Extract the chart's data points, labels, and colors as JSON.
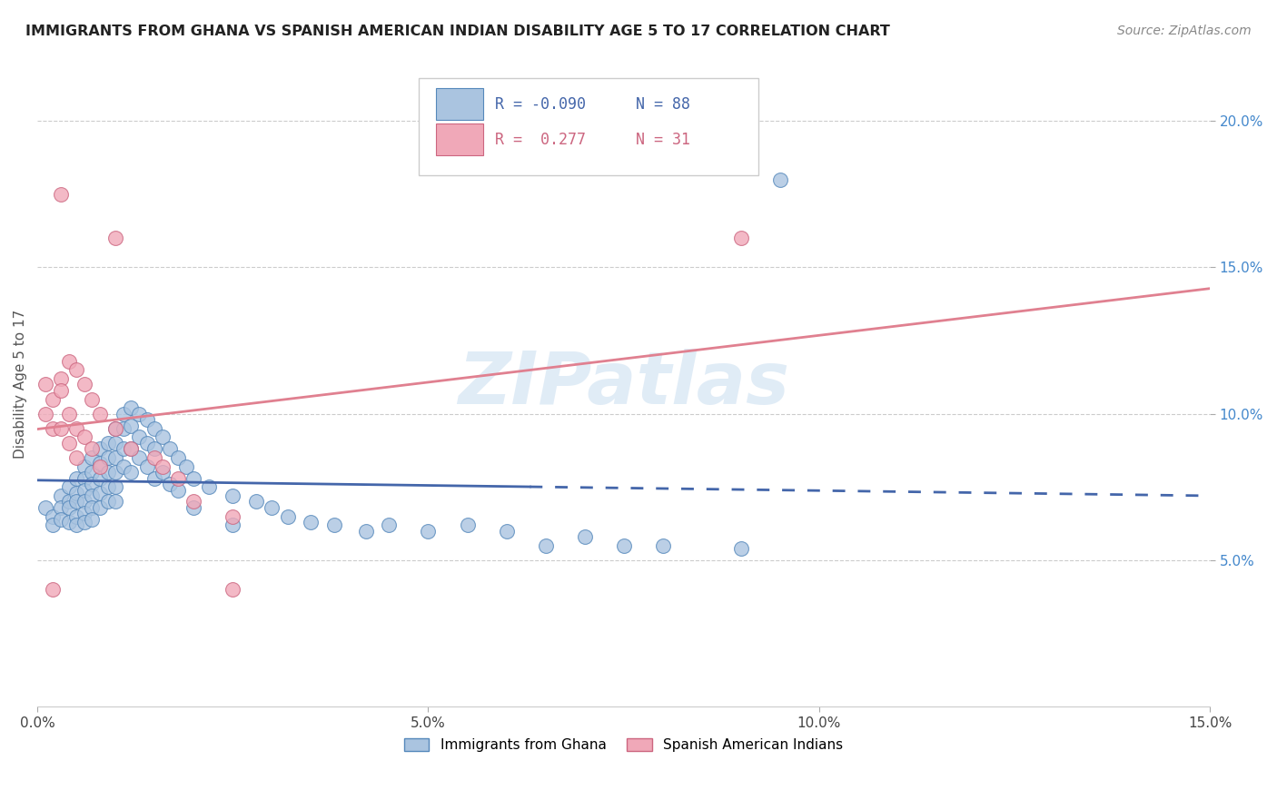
{
  "title": "IMMIGRANTS FROM GHANA VS SPANISH AMERICAN INDIAN DISABILITY AGE 5 TO 17 CORRELATION CHART",
  "source": "Source: ZipAtlas.com",
  "ylabel": "Disability Age 5 to 17",
  "xlim": [
    0.0,
    0.15
  ],
  "ylim": [
    0.0,
    0.22
  ],
  "xticks": [
    0.0,
    0.05,
    0.1,
    0.15
  ],
  "xticklabels": [
    "0.0%",
    "5.0%",
    "10.0%",
    "15.0%"
  ],
  "ytick_vals": [
    0.05,
    0.1,
    0.15,
    0.2
  ],
  "yticklabels_right": [
    "5.0%",
    "10.0%",
    "15.0%",
    "20.0%"
  ],
  "ghana_color": "#aac4e0",
  "ghana_edge_color": "#5588bb",
  "spanish_color": "#f0a8b8",
  "spanish_edge_color": "#cc6680",
  "ghana_R": -0.09,
  "ghana_N": 88,
  "spanish_R": 0.277,
  "spanish_N": 31,
  "legend_label_ghana": "Immigrants from Ghana",
  "legend_label_spanish": "Spanish American Indians",
  "watermark": "ZIPatlas",
  "ghana_line_color": "#4466aa",
  "spanish_line_color": "#e08090",
  "ghana_scatter": [
    [
      0.001,
      0.068
    ],
    [
      0.002,
      0.065
    ],
    [
      0.002,
      0.062
    ],
    [
      0.003,
      0.072
    ],
    [
      0.003,
      0.068
    ],
    [
      0.003,
      0.064
    ],
    [
      0.004,
      0.075
    ],
    [
      0.004,
      0.07
    ],
    [
      0.004,
      0.068
    ],
    [
      0.004,
      0.063
    ],
    [
      0.005,
      0.078
    ],
    [
      0.005,
      0.073
    ],
    [
      0.005,
      0.07
    ],
    [
      0.005,
      0.065
    ],
    [
      0.005,
      0.062
    ],
    [
      0.006,
      0.082
    ],
    [
      0.006,
      0.078
    ],
    [
      0.006,
      0.074
    ],
    [
      0.006,
      0.07
    ],
    [
      0.006,
      0.066
    ],
    [
      0.006,
      0.063
    ],
    [
      0.007,
      0.085
    ],
    [
      0.007,
      0.08
    ],
    [
      0.007,
      0.076
    ],
    [
      0.007,
      0.072
    ],
    [
      0.007,
      0.068
    ],
    [
      0.007,
      0.064
    ],
    [
      0.008,
      0.088
    ],
    [
      0.008,
      0.083
    ],
    [
      0.008,
      0.078
    ],
    [
      0.008,
      0.073
    ],
    [
      0.008,
      0.068
    ],
    [
      0.009,
      0.09
    ],
    [
      0.009,
      0.085
    ],
    [
      0.009,
      0.08
    ],
    [
      0.009,
      0.075
    ],
    [
      0.009,
      0.07
    ],
    [
      0.01,
      0.095
    ],
    [
      0.01,
      0.09
    ],
    [
      0.01,
      0.085
    ],
    [
      0.01,
      0.08
    ],
    [
      0.01,
      0.075
    ],
    [
      0.01,
      0.07
    ],
    [
      0.011,
      0.1
    ],
    [
      0.011,
      0.095
    ],
    [
      0.011,
      0.088
    ],
    [
      0.011,
      0.082
    ],
    [
      0.012,
      0.102
    ],
    [
      0.012,
      0.096
    ],
    [
      0.012,
      0.088
    ],
    [
      0.012,
      0.08
    ],
    [
      0.013,
      0.1
    ],
    [
      0.013,
      0.092
    ],
    [
      0.013,
      0.085
    ],
    [
      0.014,
      0.098
    ],
    [
      0.014,
      0.09
    ],
    [
      0.014,
      0.082
    ],
    [
      0.015,
      0.095
    ],
    [
      0.015,
      0.088
    ],
    [
      0.015,
      0.078
    ],
    [
      0.016,
      0.092
    ],
    [
      0.016,
      0.08
    ],
    [
      0.017,
      0.088
    ],
    [
      0.017,
      0.076
    ],
    [
      0.018,
      0.085
    ],
    [
      0.018,
      0.074
    ],
    [
      0.019,
      0.082
    ],
    [
      0.02,
      0.078
    ],
    [
      0.02,
      0.068
    ],
    [
      0.022,
      0.075
    ],
    [
      0.025,
      0.072
    ],
    [
      0.025,
      0.062
    ],
    [
      0.028,
      0.07
    ],
    [
      0.03,
      0.068
    ],
    [
      0.032,
      0.065
    ],
    [
      0.035,
      0.063
    ],
    [
      0.038,
      0.062
    ],
    [
      0.042,
      0.06
    ],
    [
      0.045,
      0.062
    ],
    [
      0.05,
      0.06
    ],
    [
      0.055,
      0.062
    ],
    [
      0.06,
      0.06
    ],
    [
      0.065,
      0.055
    ],
    [
      0.07,
      0.058
    ],
    [
      0.075,
      0.055
    ],
    [
      0.08,
      0.055
    ],
    [
      0.09,
      0.054
    ],
    [
      0.095,
      0.18
    ]
  ],
  "spanish_scatter": [
    [
      0.001,
      0.11
    ],
    [
      0.001,
      0.1
    ],
    [
      0.002,
      0.105
    ],
    [
      0.002,
      0.095
    ],
    [
      0.003,
      0.112
    ],
    [
      0.003,
      0.108
    ],
    [
      0.003,
      0.095
    ],
    [
      0.004,
      0.118
    ],
    [
      0.004,
      0.1
    ],
    [
      0.004,
      0.09
    ],
    [
      0.005,
      0.115
    ],
    [
      0.005,
      0.095
    ],
    [
      0.005,
      0.085
    ],
    [
      0.006,
      0.11
    ],
    [
      0.006,
      0.092
    ],
    [
      0.007,
      0.105
    ],
    [
      0.007,
      0.088
    ],
    [
      0.008,
      0.1
    ],
    [
      0.008,
      0.082
    ],
    [
      0.01,
      0.095
    ],
    [
      0.012,
      0.088
    ],
    [
      0.015,
      0.085
    ],
    [
      0.016,
      0.082
    ],
    [
      0.018,
      0.078
    ],
    [
      0.02,
      0.07
    ],
    [
      0.025,
      0.065
    ],
    [
      0.003,
      0.175
    ],
    [
      0.01,
      0.16
    ],
    [
      0.09,
      0.16
    ],
    [
      0.002,
      0.04
    ],
    [
      0.025,
      0.04
    ]
  ]
}
